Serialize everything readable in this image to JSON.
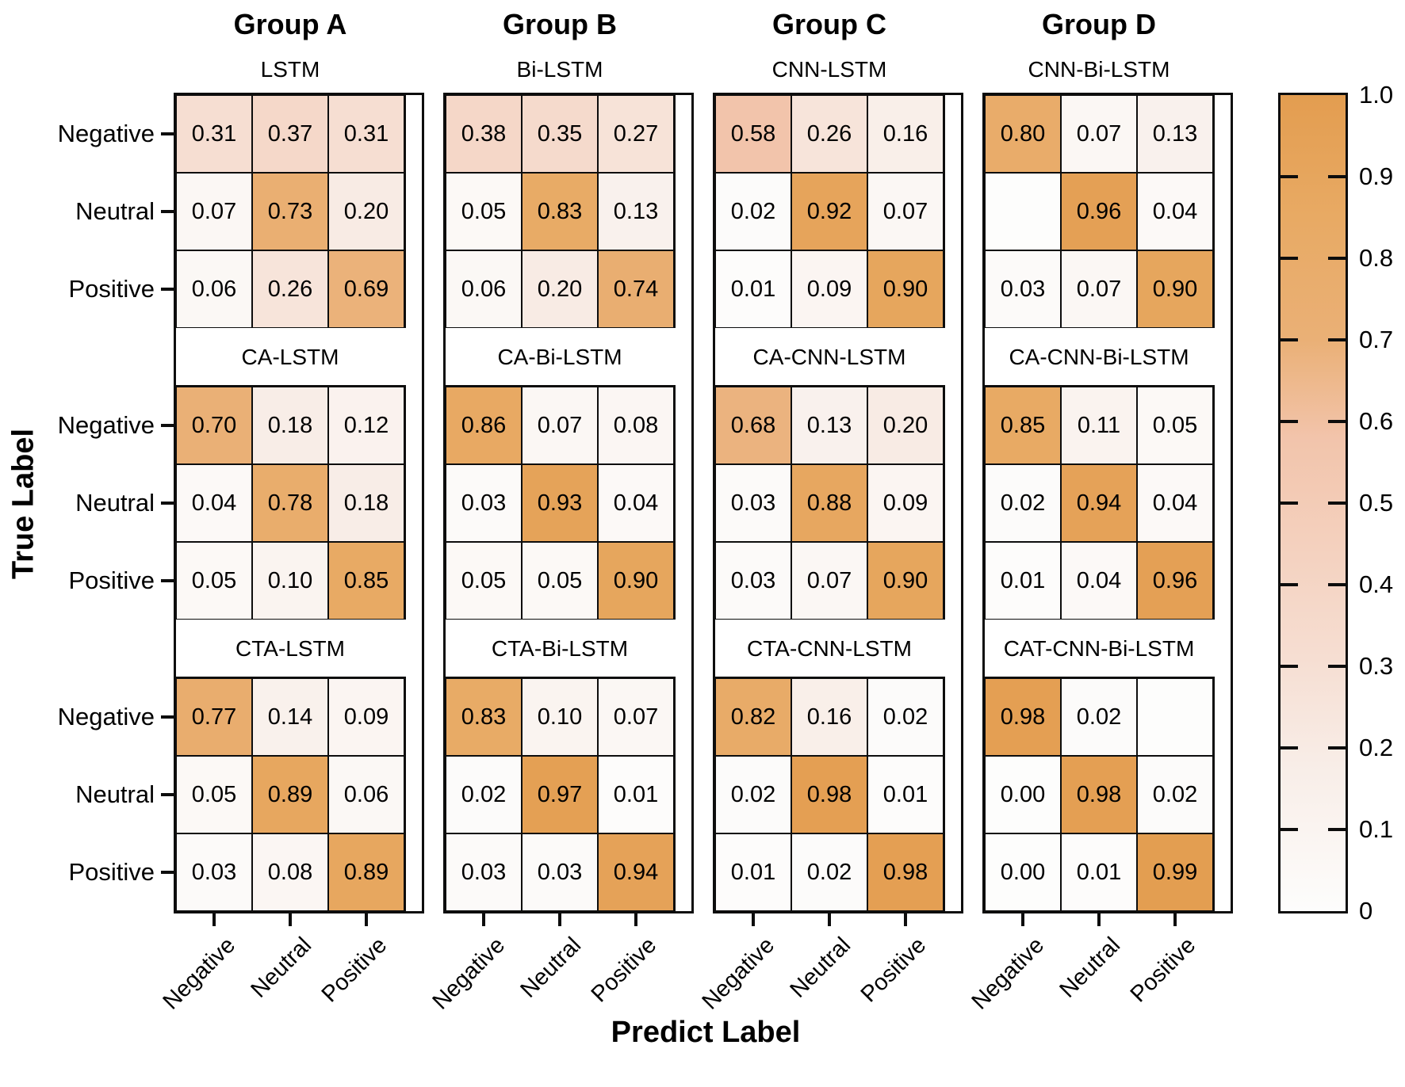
{
  "figure": {
    "x_axis_label": "Predict Label",
    "y_axis_label": "True Label"
  },
  "chart_data": {
    "type": "heatmap",
    "subtype": "confusion-matrix-grid",
    "true_label_ticks": [
      "Negative",
      "Neutral",
      "Positive"
    ],
    "predict_label_ticks": [
      "Negative",
      "Neutral",
      "Positive"
    ],
    "value_range": [
      0,
      1
    ],
    "grid": "3 model rows x 4 group columns",
    "groups": [
      {
        "name": "Group A",
        "models": [
          {
            "title": "LSTM",
            "matrix": [
              [
                0.31,
                0.37,
                0.31
              ],
              [
                0.07,
                0.73,
                0.2
              ],
              [
                0.06,
                0.26,
                0.69
              ]
            ]
          },
          {
            "title": "CA-LSTM",
            "matrix": [
              [
                0.7,
                0.18,
                0.12
              ],
              [
                0.04,
                0.78,
                0.18
              ],
              [
                0.05,
                0.1,
                0.85
              ]
            ]
          },
          {
            "title": "CTA-LSTM",
            "matrix": [
              [
                0.77,
                0.14,
                0.09
              ],
              [
                0.05,
                0.89,
                0.06
              ],
              [
                0.03,
                0.08,
                0.89
              ]
            ]
          }
        ]
      },
      {
        "name": "Group B",
        "models": [
          {
            "title": "Bi-LSTM",
            "matrix": [
              [
                0.38,
                0.35,
                0.27
              ],
              [
                0.05,
                0.83,
                0.13
              ],
              [
                0.06,
                0.2,
                0.74
              ]
            ]
          },
          {
            "title": "CA-Bi-LSTM",
            "matrix": [
              [
                0.86,
                0.07,
                0.08
              ],
              [
                0.03,
                0.93,
                0.04
              ],
              [
                0.05,
                0.05,
                0.9
              ]
            ]
          },
          {
            "title": "CTA-Bi-LSTM",
            "matrix": [
              [
                0.83,
                0.1,
                0.07
              ],
              [
                0.02,
                0.97,
                0.01
              ],
              [
                0.03,
                0.03,
                0.94
              ]
            ]
          }
        ]
      },
      {
        "name": "Group C",
        "models": [
          {
            "title": "CNN-LSTM",
            "matrix": [
              [
                0.58,
                0.26,
                0.16
              ],
              [
                0.02,
                0.92,
                0.07
              ],
              [
                0.01,
                0.09,
                0.9
              ]
            ]
          },
          {
            "title": "CA-CNN-LSTM",
            "matrix": [
              [
                0.68,
                0.13,
                0.2
              ],
              [
                0.03,
                0.88,
                0.09
              ],
              [
                0.03,
                0.07,
                0.9
              ]
            ]
          },
          {
            "title": "CTA-CNN-LSTM",
            "matrix": [
              [
                0.82,
                0.16,
                0.02
              ],
              [
                0.02,
                0.98,
                0.01
              ],
              [
                0.01,
                0.02,
                0.98
              ]
            ]
          }
        ]
      },
      {
        "name": "Group D",
        "models": [
          {
            "title": "CNN-Bi-LSTM",
            "matrix": [
              [
                0.8,
                0.07,
                0.13
              ],
              [
                null,
                0.96,
                0.04
              ],
              [
                0.03,
                0.07,
                0.9
              ]
            ]
          },
          {
            "title": "CA-CNN-Bi-LSTM",
            "matrix": [
              [
                0.85,
                0.11,
                0.05
              ],
              [
                0.02,
                0.94,
                0.04
              ],
              [
                0.01,
                0.04,
                0.96
              ]
            ]
          },
          {
            "title": "CAT-CNN-Bi-LSTM",
            "matrix": [
              [
                0.98,
                0.02,
                null
              ],
              [
                0.0,
                0.98,
                0.02
              ],
              [
                0.0,
                0.01,
                0.99
              ]
            ]
          }
        ]
      }
    ],
    "colorbar": {
      "tick_labels": [
        "1.0",
        "0.9",
        "0.8",
        "0.7",
        "0.6",
        "0.5",
        "0.4",
        "0.3",
        "0.2",
        "0.1",
        "0"
      ],
      "gradient_stops": [
        {
          "pos": 0.0,
          "rgb": [
            253,
            253,
            252
          ]
        },
        {
          "pos": 0.18,
          "rgb": [
            248,
            237,
            231
          ]
        },
        {
          "pos": 0.31,
          "rgb": [
            246,
            222,
            210
          ]
        },
        {
          "pos": 0.58,
          "rgb": [
            242,
            196,
            171
          ]
        },
        {
          "pos": 0.7,
          "rgb": [
            234,
            176,
            118
          ]
        },
        {
          "pos": 0.85,
          "rgb": [
            232,
            170,
            100
          ]
        },
        {
          "pos": 1.0,
          "rgb": [
            227,
            157,
            80
          ]
        }
      ]
    }
  }
}
